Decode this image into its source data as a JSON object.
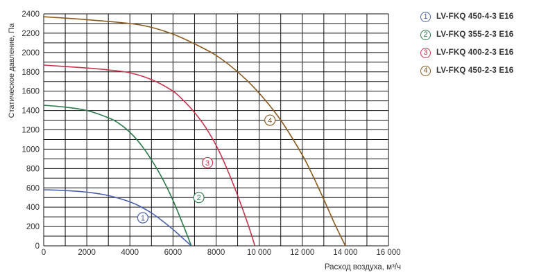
{
  "chart_data": {
    "type": "line",
    "xlabel": "Расход воздуха, м³/ч",
    "ylabel": "Статическое давление, Па",
    "xlim": [
      0,
      16000
    ],
    "ylim": [
      0,
      2400
    ],
    "x_ticks": [
      "0",
      "2000",
      "4000",
      "6000",
      "8000",
      "10 000",
      "12 000",
      "14 000",
      "16 000"
    ],
    "y_ticks": [
      "0",
      "200",
      "400",
      "600",
      "800",
      "1000",
      "1200",
      "1400",
      "1600",
      "1800",
      "2000",
      "2200",
      "2400"
    ],
    "x_tick_values": [
      0,
      2000,
      4000,
      6000,
      8000,
      10000,
      12000,
      14000,
      16000
    ],
    "y_tick_values": [
      0,
      200,
      400,
      600,
      800,
      1000,
      1200,
      1400,
      1600,
      1800,
      2000,
      2200,
      2400
    ],
    "grid": true,
    "legend_position": "top-right",
    "series": [
      {
        "name": "LV-FKQ 450-4-3 E16",
        "marker": "1",
        "color": "#4a5fae",
        "x": [
          0,
          1000,
          2000,
          3000,
          4000,
          4500,
          5000,
          5500,
          6000,
          6500,
          6850
        ],
        "y": [
          580,
          572,
          555,
          520,
          455,
          405,
          340,
          260,
          170,
          70,
          0
        ],
        "marker_at": [
          4600,
          290
        ]
      },
      {
        "name": "LV-FKQ 355-2-3 E16",
        "marker": "2",
        "color": "#2b7a4b",
        "x": [
          0,
          1000,
          2000,
          3000,
          3500,
          4000,
          4500,
          5000,
          5500,
          6000,
          6500,
          6850
        ],
        "y": [
          1455,
          1435,
          1400,
          1325,
          1265,
          1175,
          1050,
          890,
          700,
          470,
          200,
          0
        ],
        "marker_at": [
          7200,
          500
        ]
      },
      {
        "name": "LV-FKQ 400-2-3 E16",
        "marker": "3",
        "color": "#c8344e",
        "x": [
          0,
          1000,
          2000,
          3000,
          4000,
          5000,
          6000,
          6500,
          7000,
          7500,
          8000,
          8500,
          9000,
          9500,
          9800
        ],
        "y": [
          1870,
          1855,
          1840,
          1820,
          1790,
          1720,
          1600,
          1500,
          1380,
          1230,
          1040,
          800,
          520,
          210,
          0
        ],
        "marker_at": [
          7600,
          860
        ]
      },
      {
        "name": "LV-FKQ 450-2-3 E16",
        "marker": "4",
        "color": "#8a5a1e",
        "x": [
          0,
          2000,
          4000,
          5000,
          6000,
          7000,
          8000,
          9000,
          10000,
          11000,
          12000,
          12500,
          13000,
          13500,
          14000
        ],
        "y": [
          2370,
          2340,
          2300,
          2260,
          2190,
          2090,
          1970,
          1800,
          1580,
          1300,
          940,
          720,
          480,
          230,
          0
        ],
        "marker_at": [
          10500,
          1300
        ]
      }
    ]
  }
}
